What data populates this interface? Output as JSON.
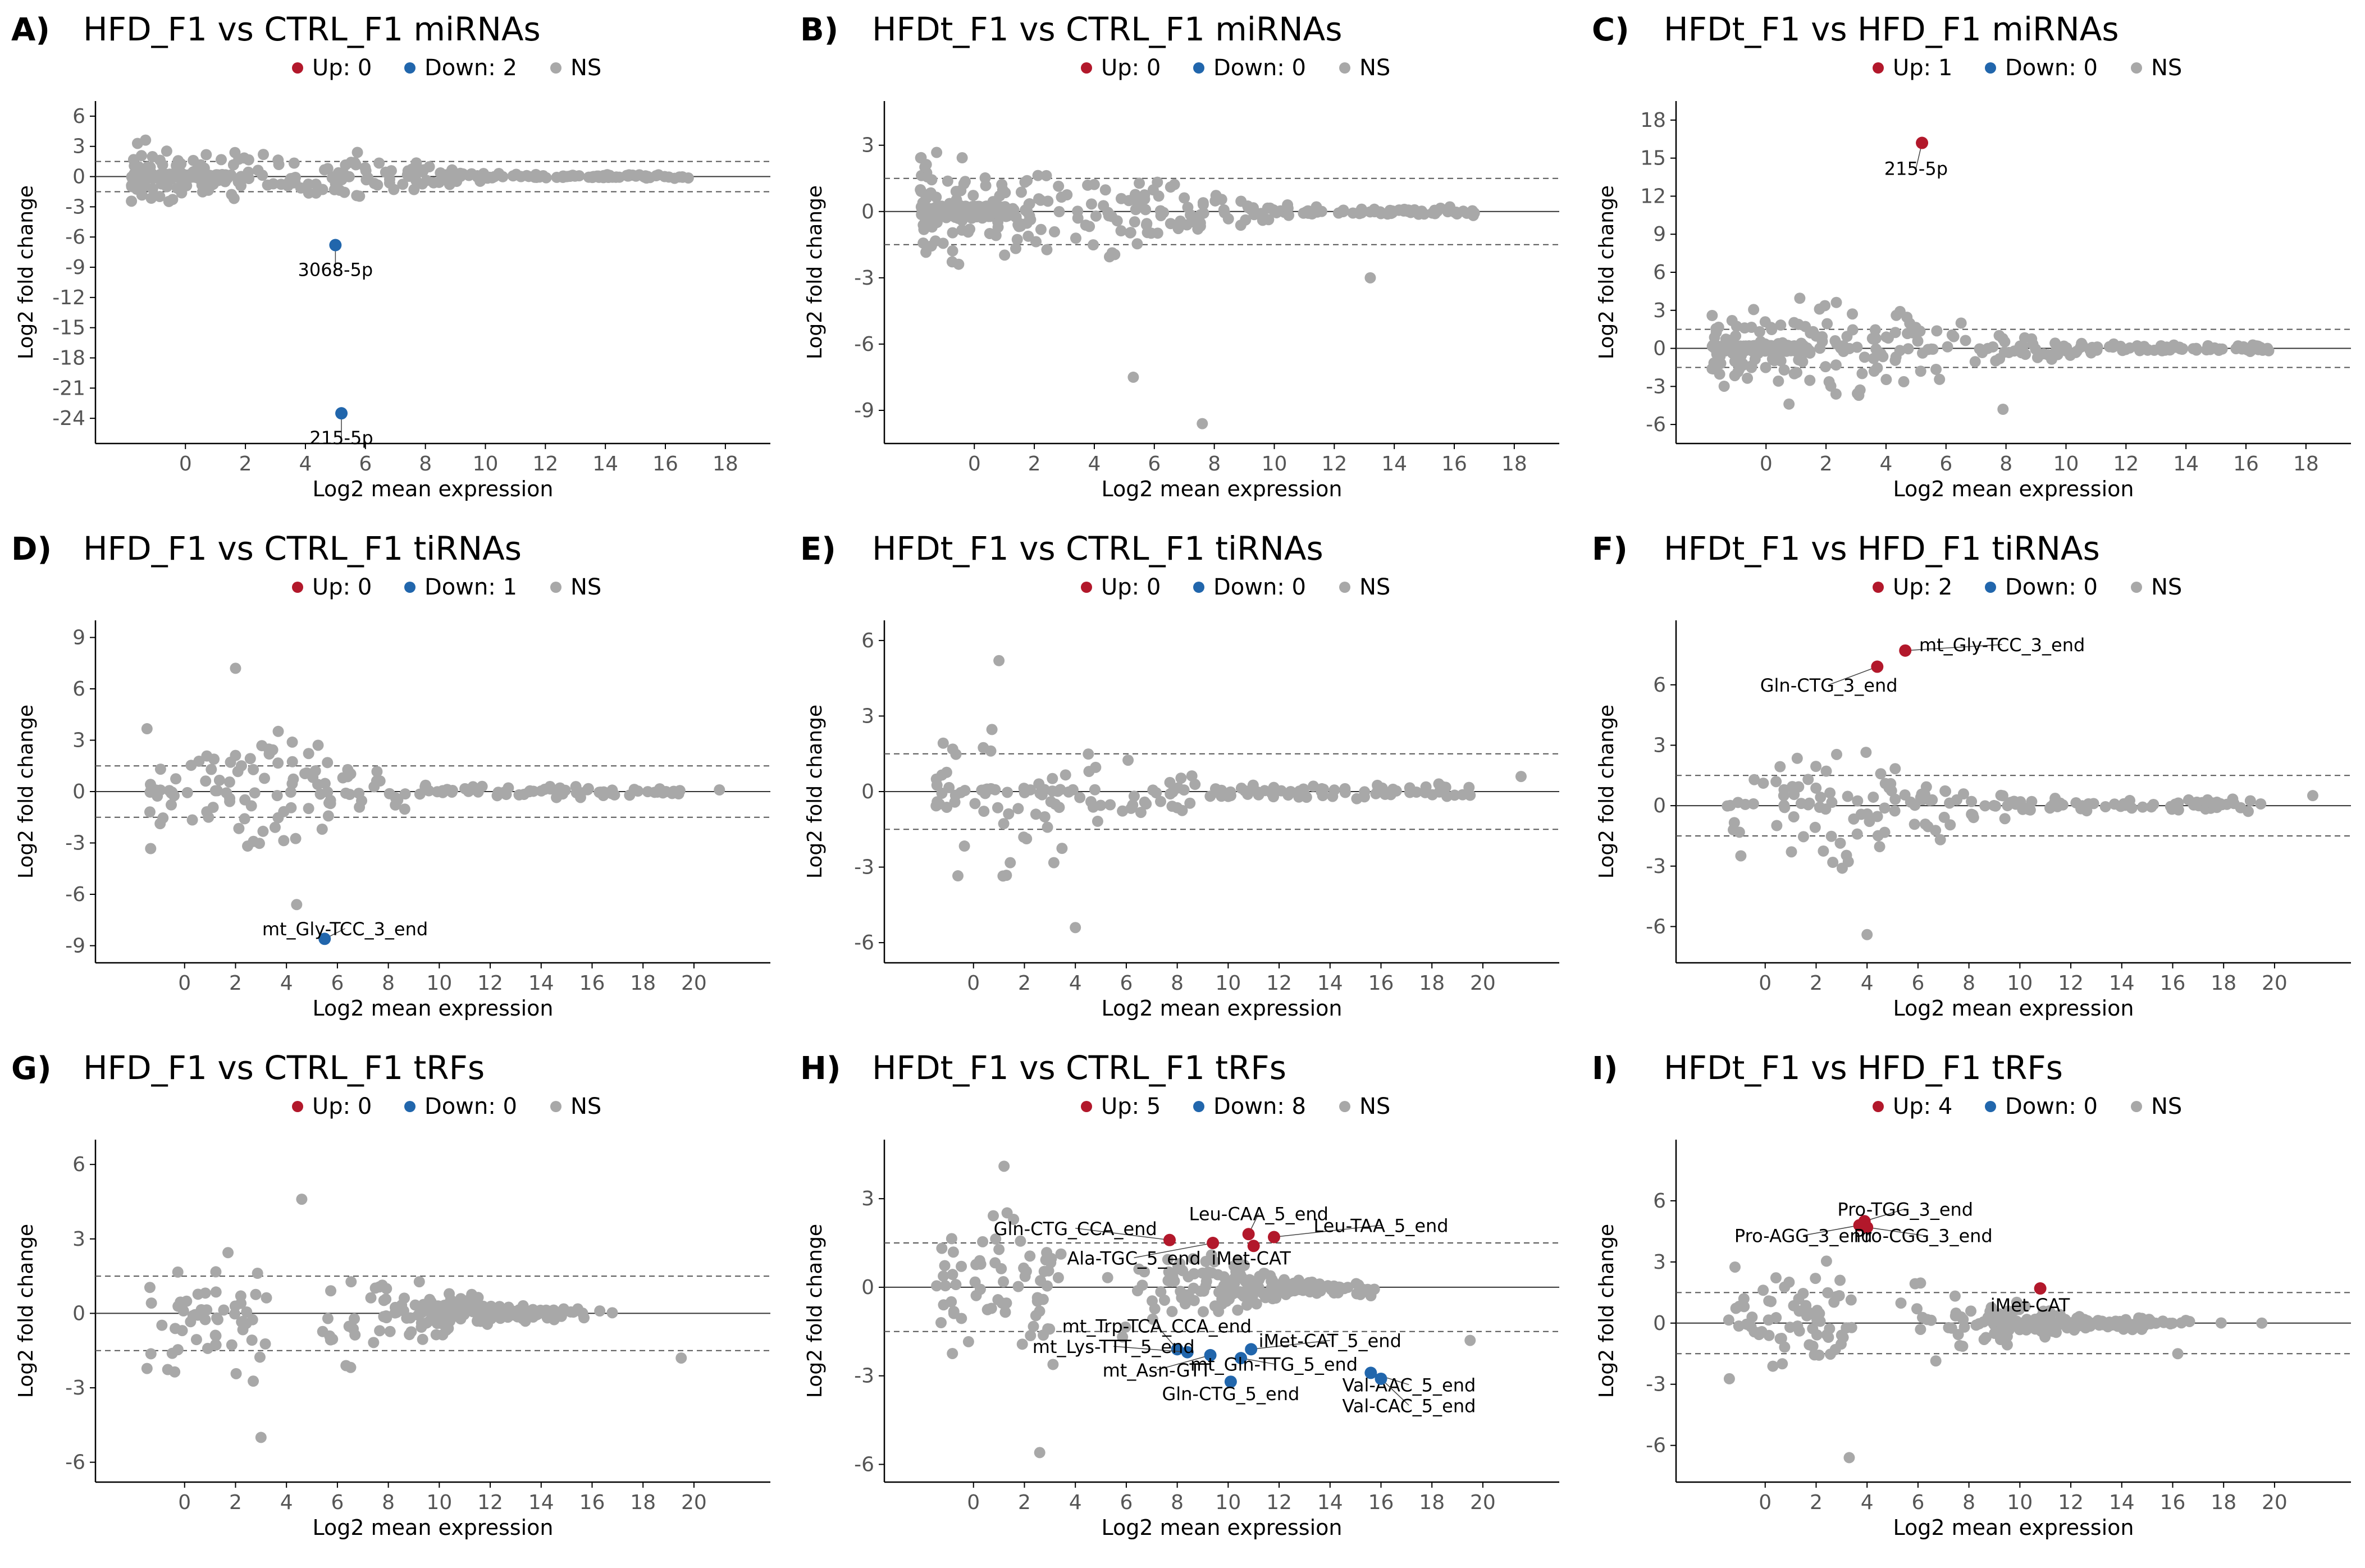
{
  "colors": {
    "up": "#b2182b",
    "down": "#2166ac",
    "ns": "#a8a8a8"
  },
  "chart_data": [
    {
      "panel": "A)",
      "type": "scatter",
      "title": "HFD_F1 vs CTRL_F1 miRNAs",
      "legend": {
        "up": "Up: 0",
        "down": "Down: 2",
        "ns": "NS"
      },
      "xlabel": "Log2 mean expression",
      "ylabel": "Log2 fold change",
      "xlim": [
        -3,
        19.5
      ],
      "ylim": [
        -26.5,
        7.5
      ],
      "xticks": [
        0,
        2,
        4,
        6,
        8,
        10,
        12,
        14,
        16,
        18
      ],
      "yticks": [
        6,
        3,
        0,
        -3,
        -6,
        -9,
        -12,
        -15,
        -18,
        -21,
        -24
      ],
      "thresholds": [
        1.5,
        -1.5
      ],
      "highlight": [
        {
          "x": 5.0,
          "y": -6.8,
          "dir": "down",
          "label": "3068-5p",
          "lx": 5.0,
          "ly": -9.2
        },
        {
          "x": 5.2,
          "y": -23.5,
          "dir": "down",
          "label": "215-5p",
          "lx": 5.2,
          "ly": -25.9
        }
      ],
      "ns_gen": {
        "n": 360,
        "seed": 11,
        "kind": "mirna",
        "xmin": -1.8,
        "xmax": 16.8,
        "spread": 3.8
      }
    },
    {
      "panel": "B)",
      "type": "scatter",
      "title": "HFDt_F1 vs CTRL_F1 miRNAs",
      "legend": {
        "up": "Up: 0",
        "down": "Down: 0",
        "ns": "NS"
      },
      "xlabel": "Log2 mean expression",
      "ylabel": "Log2 fold change",
      "xlim": [
        -3,
        19.5
      ],
      "ylim": [
        -10.5,
        5
      ],
      "xticks": [
        0,
        2,
        4,
        6,
        8,
        10,
        12,
        14,
        16,
        18
      ],
      "yticks": [
        3,
        0,
        -3,
        -6,
        -9
      ],
      "thresholds": [
        1.5,
        -1.5
      ],
      "highlight": [],
      "ns_extra": [
        [
          5.3,
          -7.5
        ],
        [
          7.6,
          -9.6
        ],
        [
          13.2,
          -3.0
        ]
      ],
      "ns_gen": {
        "n": 360,
        "seed": 23,
        "kind": "mirna",
        "xmin": -1.8,
        "xmax": 16.8,
        "spread": 3.2
      }
    },
    {
      "panel": "C)",
      "type": "scatter",
      "title": "HFDt_F1 vs HFD_F1 miRNAs",
      "legend": {
        "up": "Up: 1",
        "down": "Down: 0",
        "ns": "NS"
      },
      "xlabel": "Log2 mean expression",
      "ylabel": "Log2 fold change",
      "xlim": [
        -3,
        19.5
      ],
      "ylim": [
        -7.5,
        19.5
      ],
      "xticks": [
        0,
        2,
        4,
        6,
        8,
        10,
        12,
        14,
        16,
        18
      ],
      "yticks": [
        18,
        15,
        12,
        9,
        6,
        3,
        0,
        -3,
        -6
      ],
      "thresholds": [
        1.5,
        -1.5
      ],
      "highlight": [
        {
          "x": 5.2,
          "y": 16.2,
          "dir": "up",
          "label": "215-5p",
          "lx": 5.0,
          "ly": 14.2
        }
      ],
      "ns_extra": [
        [
          7.9,
          -4.8
        ]
      ],
      "ns_gen": {
        "n": 380,
        "seed": 37,
        "kind": "mirna",
        "xmin": -1.8,
        "xmax": 16.8,
        "spread": 5.0
      }
    },
    {
      "panel": "D)",
      "type": "scatter",
      "title": "HFD_F1 vs CTRL_F1 tiRNAs",
      "legend": {
        "up": "Up: 0",
        "down": "Down: 1",
        "ns": "NS"
      },
      "xlabel": "Log2 mean expression",
      "ylabel": "Log2 fold change",
      "xlim": [
        -3.5,
        23
      ],
      "ylim": [
        -10,
        10
      ],
      "xticks": [
        0,
        2,
        4,
        6,
        8,
        10,
        12,
        14,
        16,
        18,
        20
      ],
      "yticks": [
        9,
        6,
        3,
        0,
        -3,
        -6,
        -9
      ],
      "thresholds": [
        1.5,
        -1.5
      ],
      "highlight": [
        {
          "x": 5.5,
          "y": -8.6,
          "dir": "down",
          "label": "mt_Gly-TCC_3_end",
          "lx": 6.3,
          "ly": -8.0
        }
      ],
      "ns_extra": [
        [
          2.0,
          7.2
        ],
        [
          4.4,
          -6.6
        ],
        [
          21.0,
          0.1
        ]
      ],
      "ns_gen": {
        "n": 170,
        "seed": 41,
        "kind": "tirna",
        "xmin": -1.5,
        "xmax": 19.5,
        "spread": 5.5
      }
    },
    {
      "panel": "E)",
      "type": "scatter",
      "title": "HFDt_F1 vs CTRL_F1 tiRNAs",
      "legend": {
        "up": "Up: 0",
        "down": "Down: 0",
        "ns": "NS"
      },
      "xlabel": "Log2 mean expression",
      "ylabel": "Log2 fold change",
      "xlim": [
        -3.5,
        23
      ],
      "ylim": [
        -6.8,
        6.8
      ],
      "xticks": [
        0,
        2,
        4,
        6,
        8,
        10,
        12,
        14,
        16,
        18,
        20
      ],
      "yticks": [
        6,
        3,
        0,
        -3,
        -6
      ],
      "thresholds": [
        1.5,
        -1.5
      ],
      "highlight": [],
      "ns_extra": [
        [
          1.0,
          5.2
        ],
        [
          4.0,
          -5.4
        ],
        [
          21.5,
          0.6
        ]
      ],
      "ns_gen": {
        "n": 170,
        "seed": 53,
        "kind": "tirna",
        "xmin": -1.5,
        "xmax": 19.5,
        "spread": 4.2
      }
    },
    {
      "panel": "F)",
      "type": "scatter",
      "title": "HFDt_F1 vs HFD_F1 tiRNAs",
      "legend": {
        "up": "Up: 2",
        "down": "Down: 0",
        "ns": "NS"
      },
      "xlabel": "Log2 mean expression",
      "ylabel": "Log2 fold change",
      "xlim": [
        -3.5,
        23
      ],
      "ylim": [
        -7.8,
        9.2
      ],
      "xticks": [
        0,
        2,
        4,
        6,
        8,
        10,
        12,
        14,
        16,
        18,
        20
      ],
      "yticks": [
        6,
        3,
        0,
        -3,
        -6
      ],
      "thresholds": [
        1.5,
        -1.5
      ],
      "highlight": [
        {
          "x": 5.5,
          "y": 7.7,
          "dir": "up",
          "label": "mt_Gly-TCC_3_end",
          "lx": 9.3,
          "ly": 8.0
        },
        {
          "x": 4.4,
          "y": 6.9,
          "dir": "up",
          "label": "Gln-CTG_3_end",
          "lx": 2.5,
          "ly": 6.0
        }
      ],
      "ns_extra": [
        [
          4.0,
          -6.4
        ],
        [
          21.5,
          0.5
        ]
      ],
      "ns_gen": {
        "n": 170,
        "seed": 61,
        "kind": "tirna",
        "xmin": -1.5,
        "xmax": 19.5,
        "spread": 5.0
      }
    },
    {
      "panel": "G)",
      "type": "scatter",
      "title": "HFD_F1 vs CTRL_F1 tRFs",
      "legend": {
        "up": "Up: 0",
        "down": "Down: 0",
        "ns": "NS"
      },
      "xlabel": "Log2 mean expression",
      "ylabel": "Log2 fold change",
      "xlim": [
        -3.5,
        23
      ],
      "ylim": [
        -6.8,
        7
      ],
      "xticks": [
        0,
        2,
        4,
        6,
        8,
        10,
        12,
        14,
        16,
        18,
        20
      ],
      "yticks": [
        6,
        3,
        0,
        -3,
        -6
      ],
      "thresholds": [
        1.5,
        -1.5
      ],
      "highlight": [],
      "ns_extra": [
        [
          4.6,
          4.6
        ],
        [
          3.0,
          -5.0
        ],
        [
          19.5,
          -1.8
        ]
      ],
      "ns_gen": {
        "n": 240,
        "seed": 71,
        "kind": "trf",
        "xmin": -1.5,
        "xmax": 17.5,
        "spread": 3.6
      }
    },
    {
      "panel": "H)",
      "type": "scatter",
      "title": "HFDt_F1 vs CTRL_F1 tRFs",
      "legend": {
        "up": "Up: 5",
        "down": "Down: 8",
        "ns": "NS"
      },
      "xlabel": "Log2 mean expression",
      "ylabel": "Log2 fold change",
      "xlim": [
        -3.5,
        23
      ],
      "ylim": [
        -6.6,
        5
      ],
      "xticks": [
        0,
        2,
        4,
        6,
        8,
        10,
        12,
        14,
        16,
        18,
        20
      ],
      "yticks": [
        3,
        0,
        -3,
        -6
      ],
      "thresholds": [
        1.5,
        -1.5
      ],
      "highlight": [
        {
          "x": 7.7,
          "y": 1.6,
          "dir": "up",
          "label": "Gln-CTG_CCA_end",
          "lx": 4.0,
          "ly": 2.0
        },
        {
          "x": 9.4,
          "y": 1.5,
          "dir": "up",
          "label": "Ala-TGC_5_end",
          "lx": 6.3,
          "ly": 1.0
        },
        {
          "x": 10.8,
          "y": 1.8,
          "dir": "up",
          "label": "Leu-CAA_5_end",
          "lx": 11.2,
          "ly": 2.5
        },
        {
          "x": 11.0,
          "y": 1.4,
          "dir": "up",
          "label": "iMet-CAT",
          "lx": 10.9,
          "ly": 1.0
        },
        {
          "x": 11.8,
          "y": 1.7,
          "dir": "up",
          "label": "Leu-TAA_5_end",
          "lx": 16.0,
          "ly": 2.1
        },
        {
          "x": 8.0,
          "y": -2.1,
          "dir": "down",
          "label": "mt_Trp-TCA_CCA_end",
          "lx": 7.2,
          "ly": -1.3
        },
        {
          "x": 8.4,
          "y": -2.2,
          "dir": "down",
          "label": "mt_Lys-TTT_5_end",
          "lx": 5.5,
          "ly": -2.0
        },
        {
          "x": 9.3,
          "y": -2.3,
          "dir": "down",
          "label": "mt_Asn-GTT",
          "lx": 7.2,
          "ly": -2.8
        },
        {
          "x": 10.9,
          "y": -2.1,
          "dir": "down",
          "label": "iMet-CAT_5_end",
          "lx": 14.0,
          "ly": -1.8
        },
        {
          "x": 10.5,
          "y": -2.4,
          "dir": "down",
          "label": "mt_Gln-TTG_5_end",
          "lx": 11.8,
          "ly": -2.6
        },
        {
          "x": 10.1,
          "y": -3.2,
          "dir": "down",
          "label": "Gln-CTG_5_end",
          "lx": 10.1,
          "ly": -3.6
        },
        {
          "x": 15.6,
          "y": -2.9,
          "dir": "down",
          "label": "Val-AAC_5_end",
          "lx": 17.1,
          "ly": -3.3
        },
        {
          "x": 16.0,
          "y": -3.1,
          "dir": "down",
          "label": "Val-CAC_5_end",
          "lx": 17.1,
          "ly": -4.0
        }
      ],
      "ns_extra": [
        [
          2.6,
          -5.6
        ],
        [
          1.2,
          4.1
        ],
        [
          19.5,
          -1.8
        ]
      ],
      "ns_gen": {
        "n": 260,
        "seed": 83,
        "kind": "trf",
        "xmin": -1.5,
        "xmax": 17.5,
        "spread": 3.2
      }
    },
    {
      "panel": "I)",
      "type": "scatter",
      "title": "HFDt_F1 vs HFD_F1 tRFs",
      "legend": {
        "up": "Up: 4",
        "down": "Down: 0",
        "ns": "NS"
      },
      "xlabel": "Log2 mean expression",
      "ylabel": "Log2 fold change",
      "xlim": [
        -3.5,
        23
      ],
      "ylim": [
        -7.8,
        9.0
      ],
      "xticks": [
        0,
        2,
        4,
        6,
        8,
        10,
        12,
        14,
        16,
        18,
        20
      ],
      "yticks": [
        6,
        3,
        0,
        -3,
        -6
      ],
      "thresholds": [
        1.5,
        -1.5
      ],
      "highlight": [
        {
          "x": 3.9,
          "y": 5.0,
          "dir": "up",
          "label": "Pro-TGG_3_end",
          "lx": 5.5,
          "ly": 5.6
        },
        {
          "x": 3.7,
          "y": 4.8,
          "dir": "up",
          "label": "Pro-AGG_3_end",
          "lx": 1.5,
          "ly": 4.3
        },
        {
          "x": 4.0,
          "y": 4.7,
          "dir": "up",
          "label": "Pro-CGG_3_end",
          "lx": 6.2,
          "ly": 4.3
        },
        {
          "x": 10.8,
          "y": 1.7,
          "dir": "up",
          "label": "iMet-CAT",
          "lx": 10.4,
          "ly": 0.9
        }
      ],
      "ns_extra": [
        [
          3.3,
          -6.6
        ],
        [
          16.2,
          -1.5
        ],
        [
          19.5,
          0.0
        ]
      ],
      "ns_gen": {
        "n": 260,
        "seed": 97,
        "kind": "trf",
        "xmin": -1.5,
        "xmax": 17.5,
        "spread": 3.6
      }
    }
  ]
}
